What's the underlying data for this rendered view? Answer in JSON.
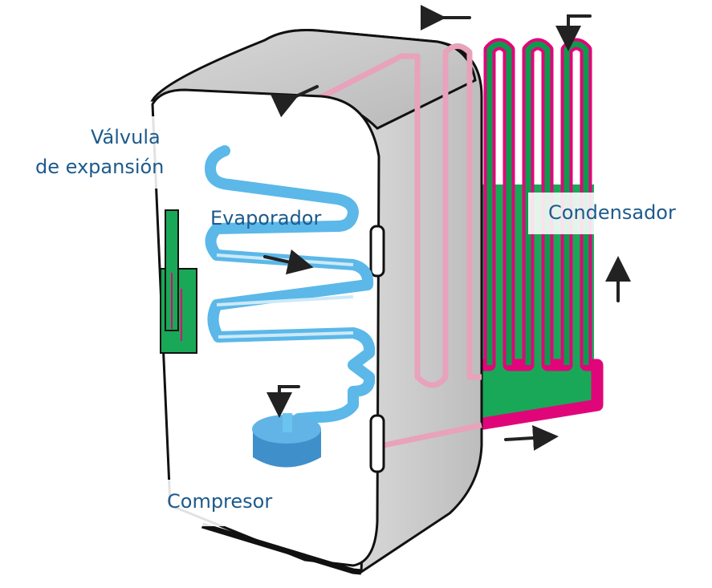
{
  "diagram": {
    "labels": {
      "valve_line1": "Válvula",
      "valve_line2": "de expansión",
      "evaporator": "Evaporador",
      "condenser": "Condensador",
      "compressor": "Compresor"
    },
    "colors": {
      "refrigerant_cold": "#5bb8e8",
      "refrigerant_hot": "#e0067a",
      "pipe_inside": "#e8a2bb",
      "condenser_fill": "#0e9a4c",
      "compressor": "#4a9ed6",
      "fridge_side": "#cfcfcf",
      "fridge_front": "#ffffff",
      "outline": "#111111",
      "label_text": "#1d5a8c"
    },
    "icons": [
      "airflow-arrow-icon",
      "compressor-icon",
      "door-handle-icon"
    ]
  }
}
